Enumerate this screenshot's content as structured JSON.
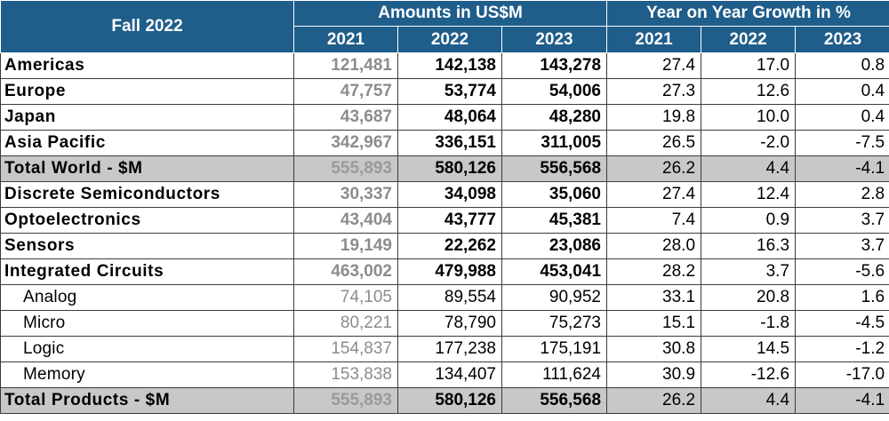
{
  "table": {
    "corner": "Fall 2022",
    "amounts_header": "Amounts in US$M",
    "growth_header": "Year on Year Growth in %",
    "years": [
      "2021",
      "2022",
      "2023",
      "2021",
      "2022",
      "2023"
    ],
    "rows": [
      {
        "label": "Americas",
        "sub": false,
        "total": false,
        "cells": [
          "121,481",
          "142,138",
          "143,278",
          "27.4",
          "17.0",
          "0.8"
        ]
      },
      {
        "label": "Europe",
        "sub": false,
        "total": false,
        "cells": [
          "47,757",
          "53,774",
          "54,006",
          "27.3",
          "12.6",
          "0.4"
        ]
      },
      {
        "label": "Japan",
        "sub": false,
        "total": false,
        "cells": [
          "43,687",
          "48,064",
          "48,280",
          "19.8",
          "10.0",
          "0.4"
        ]
      },
      {
        "label": "Asia Pacific",
        "sub": false,
        "total": false,
        "cells": [
          "342,967",
          "336,151",
          "311,005",
          "26.5",
          "-2.0",
          "-7.5"
        ]
      },
      {
        "label": "Total World - $M",
        "sub": false,
        "total": true,
        "cells": [
          "555,893",
          "580,126",
          "556,568",
          "26.2",
          "4.4",
          "-4.1"
        ]
      },
      {
        "label": "Discrete Semiconductors",
        "sub": false,
        "total": false,
        "cells": [
          "30,337",
          "34,098",
          "35,060",
          "27.4",
          "12.4",
          "2.8"
        ]
      },
      {
        "label": "Optoelectronics",
        "sub": false,
        "total": false,
        "cells": [
          "43,404",
          "43,777",
          "45,381",
          "7.4",
          "0.9",
          "3.7"
        ]
      },
      {
        "label": "Sensors",
        "sub": false,
        "total": false,
        "cells": [
          "19,149",
          "22,262",
          "23,086",
          "28.0",
          "16.3",
          "3.7"
        ]
      },
      {
        "label": "Integrated Circuits",
        "sub": false,
        "total": false,
        "cells": [
          "463,002",
          "479,988",
          "453,041",
          "28.2",
          "3.7",
          "-5.6"
        ]
      },
      {
        "label": "Analog",
        "sub": true,
        "total": false,
        "cells": [
          "74,105",
          "89,554",
          "90,952",
          "33.1",
          "20.8",
          "1.6"
        ]
      },
      {
        "label": "Micro",
        "sub": true,
        "total": false,
        "cells": [
          "80,221",
          "78,790",
          "75,273",
          "15.1",
          "-1.8",
          "-4.5"
        ]
      },
      {
        "label": "Logic",
        "sub": true,
        "total": false,
        "cells": [
          "154,837",
          "177,238",
          "175,191",
          "30.8",
          "14.5",
          "-1.2"
        ]
      },
      {
        "label": "Memory",
        "sub": true,
        "total": false,
        "cells": [
          "153,838",
          "134,407",
          "111,624",
          "30.9",
          "-12.6",
          "-17.0"
        ]
      },
      {
        "label": "Total Products - $M",
        "sub": false,
        "total": true,
        "cells": [
          "555,893",
          "580,126",
          "556,568",
          "26.2",
          "4.4",
          "-4.1"
        ]
      }
    ]
  }
}
